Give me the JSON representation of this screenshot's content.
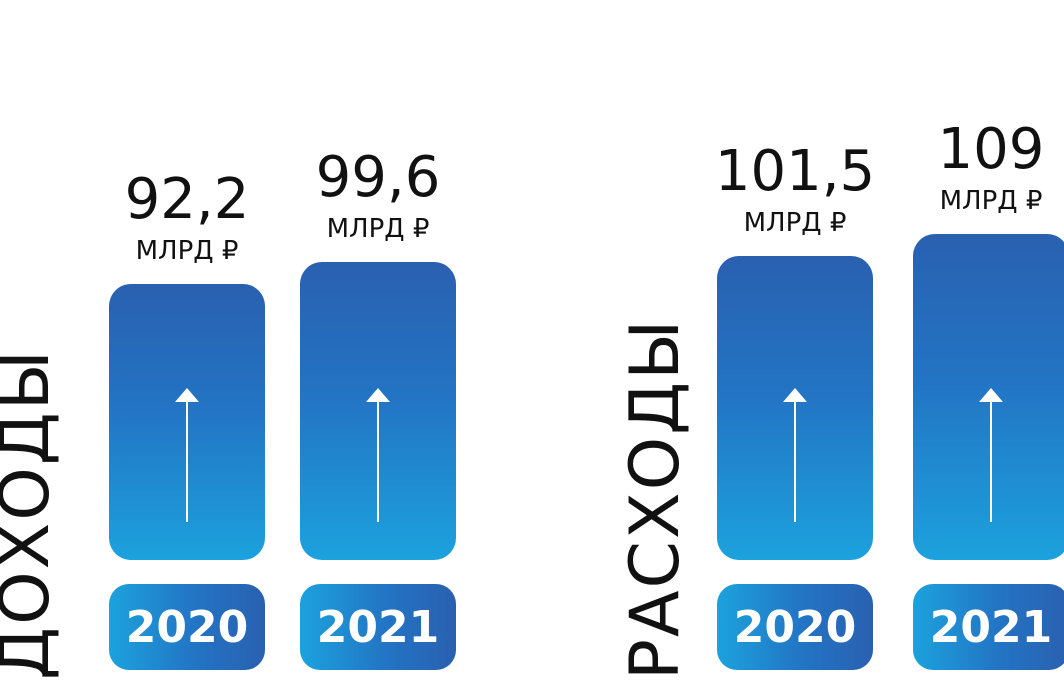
{
  "chart_data": [
    {
      "type": "bar",
      "title": "ДОХОДЫ",
      "categories": [
        "2020",
        "2021"
      ],
      "values": [
        92.2,
        99.6
      ],
      "value_labels": [
        "92,2",
        "99,6"
      ],
      "unit": "МЛРД ₽"
    },
    {
      "type": "bar",
      "title": "РАСХОДЫ",
      "categories": [
        "2020",
        "2021"
      ],
      "values": [
        101.5,
        109
      ],
      "value_labels": [
        "101,5",
        "109"
      ],
      "unit": "МЛРД ₽"
    }
  ],
  "colors": {
    "bar_top": "#2a60b0",
    "bar_bottom": "#1ca2dd",
    "badge_text": "#ffffff"
  },
  "icons": {
    "bar_arrow": "up-arrow-icon"
  }
}
